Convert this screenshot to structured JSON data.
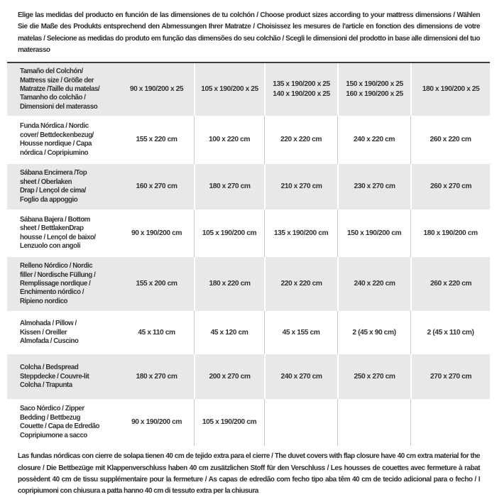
{
  "page": {
    "intro": "Elige las medidas del producto en función de las dimensiones de tu colchón / Choose product sizes according to your mattress dimensions / Wählen Sie die Maße des Produkts entsprechend den Abmessungen Ihrer Matratze / Choisissez les mesures de l'article en fonction des dimensions de votre matelas / Selecione as medidas do produto em função das dimensões do seu colchão / Scegli le dimensioni del prodotto in base alle dimensioni del tuo materasso",
    "outro": "Las fundas nórdicas con cierre de solapa tienen 40 cm de tejido extra para el cierre / The duvet covers with flap closure have 40 cm extra material for the closure / Die Bettbezüge mit Klappenverschluss haben 40 cm zusätzlichen Stoff für den Verschluss / Les housses de couettes avec fermeture à rabat possèdent 40 cm de tissu supplémentaire pour la fermeture / As capas de edredão com fecho tipo aba têm 40 cm de tecido adicional para o fecho / I copripiumoni con chiusura a patta hanno 40 cm di tessuto extra per la chiusura"
  },
  "table": {
    "rows": [
      {
        "label": "Tamaño del Colchón/\nMattress size / Größe der\nMatratze /Taille du matelas/\nTamanho do colchão /\nDimensioni del materasso",
        "values": [
          "90 x 190/200 x 25",
          "105 x 190/200 x 25",
          "135 x 190/200 x 25\n140 x 190/200 x 25",
          "150 x 190/200 x 25\n160 x 190/200 x 25",
          "180 x 190/200 x 25"
        ]
      },
      {
        "label": "Funda Nórdica / Nordic\ncover/ Bettdeckenbezug/\nHousse nordique / Capa\nnórdica / Copripiumino",
        "values": [
          "155 x 220 cm",
          "100 x 220 cm",
          "220 x 220 cm",
          "240 x 220 cm",
          "260 x 220 cm"
        ]
      },
      {
        "label": "Sábana Encimera /Top\nsheet / Oberlaken\nDrap / Lençol de cima/\nFoglio da appoggio",
        "values": [
          "160 x 270 cm",
          "180 x 270 cm",
          "210 x 270 cm",
          "230 x 270 cm",
          "260 x 270 cm"
        ]
      },
      {
        "label": "Sábana Bajera / Bottom\nsheet / BettlakenDrap\nhousse / Lençol de baixo/\nLenzuolo con angoli",
        "values": [
          "90 x 190/200 cm",
          "105 x 190/200 cm",
          "135 x 190/200 cm",
          "150 x 190/200 cm",
          "180 x 190/200 cm"
        ]
      },
      {
        "label": "Relleno Nórdico / Nordic\nfiller / Nordische Füllung /\nRemplissage nordique /\nEnchimento nórdico /\nRipieno nordico",
        "values": [
          "155 x 200 cm",
          "180 x 220 cm",
          "220 x 220 cm",
          "240 x 220 cm",
          "260 x 220 cm"
        ]
      },
      {
        "label": "Almohada / Pillow /\nKissen / Oreiller\nAlmofada / Cuscino",
        "values": [
          "45 x 110 cm",
          "45 x 120 cm",
          "45 x 155 cm",
          "2 (45 x 90 cm)",
          "2 (45 x 110 cm)"
        ]
      },
      {
        "label": "Colcha / Bedspread\nSteppdecke / Couvre-lit\nColcha / Trapunta",
        "values": [
          "180 x 270 cm",
          "200 x 270 cm",
          "240 x 270 cm",
          "250 x 270 cm",
          "270 x 270 cm"
        ]
      },
      {
        "label": "Saco Nórdico / Zipper\nBedding / Bettbezug\nCouette / Capa de Edredão\nCopripiumone a sacco",
        "values": [
          "90 x 190/200 cm",
          "105 x 190/200 cm",
          "",
          "",
          ""
        ]
      }
    ]
  },
  "colors": {
    "row_alt_bg": "#e8e8e8",
    "text": "#333333",
    "separator_line": "#c9c9c9",
    "table_top_border": "#3f3f3f"
  }
}
